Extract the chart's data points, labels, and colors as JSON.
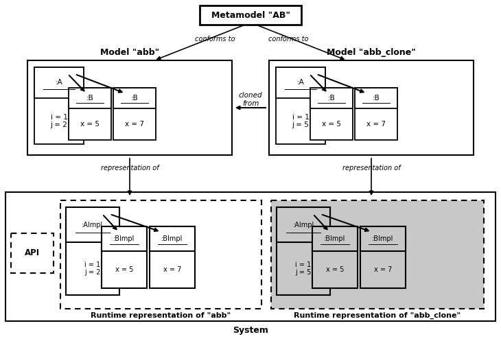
{
  "bg_color": "#ffffff",
  "title_metamodel": "Metamodel \"AB\"",
  "title_model_abb": "Model \"abb\"",
  "title_model_clone": "Model \"abb_clone\"",
  "label_conforms_left": "conforms to",
  "label_conforms_right": "conforms to",
  "label_cloned_from": "cloned\nfrom",
  "label_repr_of_left": "representation of",
  "label_repr_of_right": "representation of",
  "label_runtime_abb": "Runtime representation of \"abb\"",
  "label_runtime_clone": "Runtime representation of \"abb_clone\"",
  "label_system": "System",
  "label_api": "API",
  "model_abb_A_label": ":A",
  "model_abb_B1_label": ":B",
  "model_abb_B2_label": ":B",
  "model_abb_A_attrs": "i = 1\nj = 2",
  "model_abb_B1_attrs": "x = 5",
  "model_abb_B2_attrs": "x = 7",
  "model_clone_A_label": ":A",
  "model_clone_B1_label": ":B",
  "model_clone_B2_label": ":B",
  "model_clone_A_attrs": "i = 1\nj = 5",
  "model_clone_B1_attrs": "x = 5",
  "model_clone_B2_attrs": "x = 7",
  "impl_abb_A_label": ":AImpl",
  "impl_abb_B1_label": ":BImpl",
  "impl_abb_B2_label": ":BImpl",
  "impl_abb_A_attrs": "i = 1\nj = 2",
  "impl_abb_B1_attrs": "x = 5",
  "impl_abb_B2_attrs": "x = 7",
  "impl_clone_A_label": ":AImpl",
  "impl_clone_B1_label": ":BImpl",
  "impl_clone_B2_label": ":BImpl",
  "impl_clone_A_attrs": "i = 1\nj = 5",
  "impl_clone_B1_attrs": "x = 5",
  "impl_clone_B2_attrs": "x = 7",
  "color_white": "#ffffff",
  "color_light_gray": "#c8c8c8",
  "color_black": "#000000"
}
